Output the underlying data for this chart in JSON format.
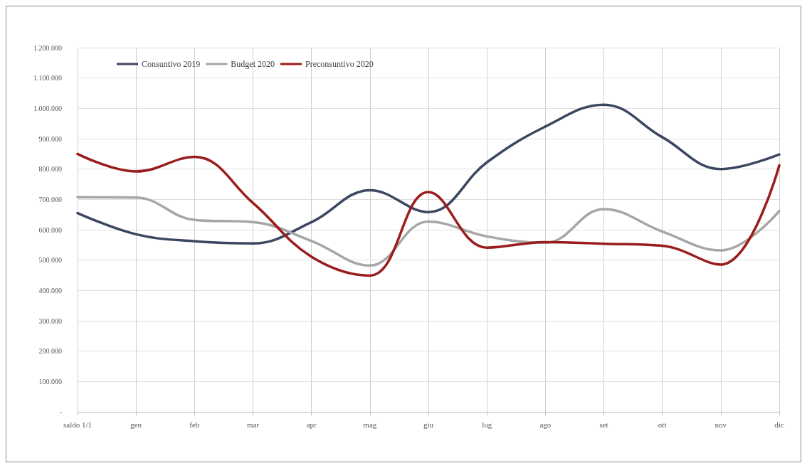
{
  "chart_data": {
    "type": "line",
    "categories": [
      "saldo 1/1",
      "gen",
      "feb",
      "mar",
      "apr",
      "mag",
      "giu",
      "lug",
      "ago",
      "set",
      "ott",
      "nov",
      "dic"
    ],
    "series": [
      {
        "name": "Consuntivo 2019",
        "color": "#3b4660",
        "values": [
          655000,
          585000,
          562000,
          555000,
          625000,
          730000,
          658000,
          822000,
          940000,
          1012000,
          905000,
          800000,
          848000
        ]
      },
      {
        "name": "Budget 2020",
        "color": "#a6a6a6",
        "values": [
          707000,
          706000,
          632000,
          625000,
          563000,
          482000,
          627000,
          578000,
          557000,
          668000,
          594000,
          532000,
          662000
        ]
      },
      {
        "name": "Preconsuntivo 2020",
        "color": "#9b1c1c",
        "values": [
          850000,
          792000,
          840000,
          688000,
          511000,
          449000,
          724000,
          541000,
          559000,
          554000,
          547000,
          485000,
          812000
        ]
      }
    ],
    "ylim": [
      0,
      1200000
    ],
    "yticks": [
      {
        "value": 0,
        "label": "-"
      },
      {
        "value": 100000,
        "label": "100.000"
      },
      {
        "value": 200000,
        "label": "200.000"
      },
      {
        "value": 300000,
        "label": "300.000"
      },
      {
        "value": 400000,
        "label": "400.000"
      },
      {
        "value": 500000,
        "label": "500.000"
      },
      {
        "value": 600000,
        "label": "600.000"
      },
      {
        "value": 700000,
        "label": "700.000"
      },
      {
        "value": 800000,
        "label": "800.000"
      },
      {
        "value": 900000,
        "label": "900.000"
      },
      {
        "value": 1000000,
        "label": "1.000.000"
      },
      {
        "value": 1100000,
        "label": "1.100.000"
      },
      {
        "value": 1200000,
        "label": "1.200.000"
      }
    ],
    "grid": true,
    "legend": "top left",
    "marker": "none",
    "line_style": "solid"
  }
}
